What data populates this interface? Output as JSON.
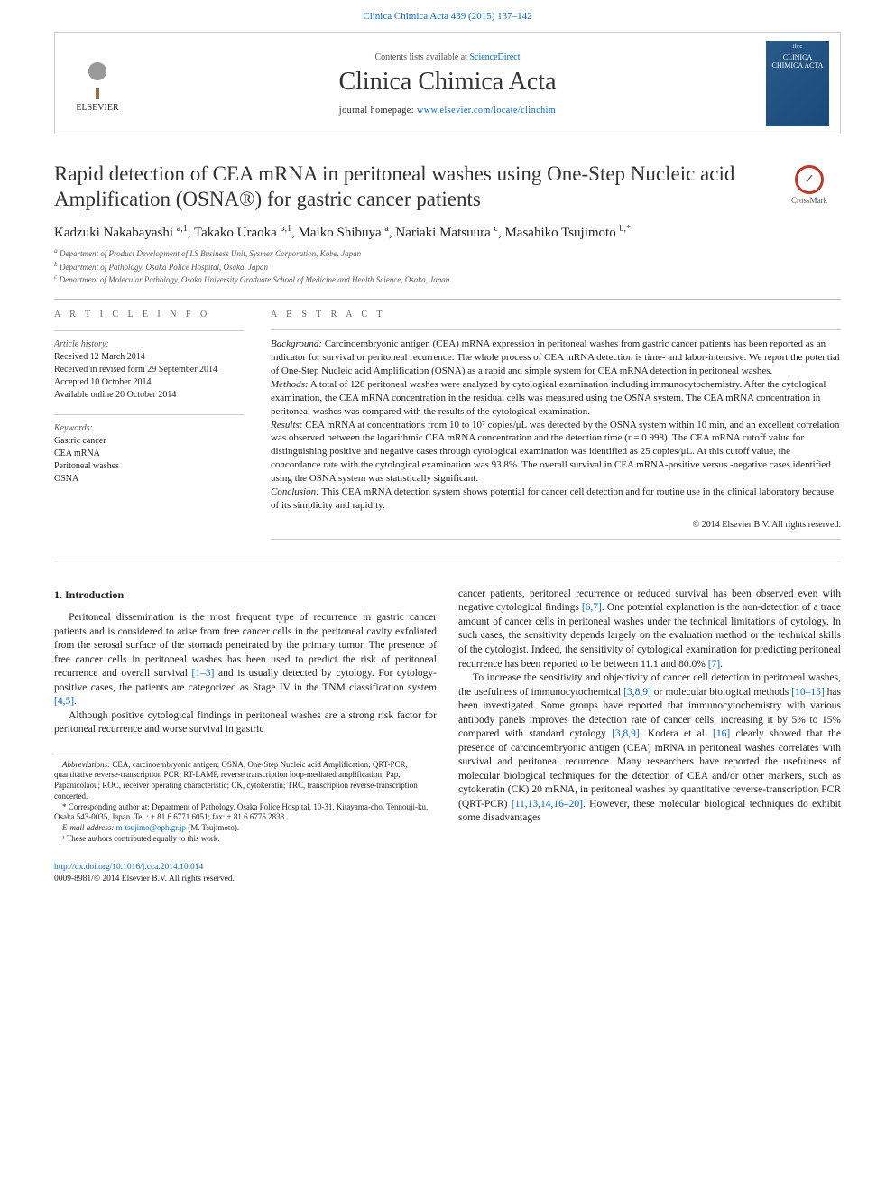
{
  "top_citation": {
    "text": "Clinica Chimica Acta 439 (2015) 137–142",
    "link_color": "#0066cc"
  },
  "header": {
    "contents_text": "Contents lists available at ",
    "contents_link": "ScienceDirect",
    "journal_name": "Clinica Chimica Acta",
    "homepage_label": "journal homepage: ",
    "homepage_url": "www.elsevier.com/locate/clinchim",
    "publisher_name": "ELSEVIER",
    "cover_brand": "ifcc",
    "cover_title": "CLINICA CHIMICA ACTA"
  },
  "crossmark_label": "CrossMark",
  "title": "Rapid detection of CEA mRNA in peritoneal washes using One-Step Nucleic acid Amplification (OSNA®) for gastric cancer patients",
  "authors_html": "Kadzuki Nakabayashi <sup>a,1</sup>, Takako Uraoka <sup>b,1</sup>, Maiko Shibuya <sup>a</sup>, Nariaki Matsuura <sup>c</sup>, Masahiko Tsujimoto <sup>b,*</sup>",
  "affiliations": [
    "a Department of Product Development of LS Business Unit, Sysmex Corporation, Kobe, Japan",
    "b Department of Pathology, Osaka Police Hospital, Osaka, Japan",
    "c Department of Molecular Pathology, Osaka University Graduate School of Medicine and Health Science, Osaka, Japan"
  ],
  "article_info": {
    "heading": "A R T I C L E   I N F O",
    "history_label": "Article history:",
    "history": [
      "Received 12 March 2014",
      "Received in revised form 29 September 2014",
      "Accepted 10 October 2014",
      "Available online 20 October 2014"
    ],
    "keywords_label": "Keywords:",
    "keywords": [
      "Gastric cancer",
      "CEA mRNA",
      "Peritoneal washes",
      "OSNA"
    ]
  },
  "abstract": {
    "heading": "A B S T R A C T",
    "sections": {
      "background_label": "Background:",
      "background_text": " Carcinoembryonic antigen (CEA) mRNA expression in peritoneal washes from gastric cancer patients has been reported as an indicator for survival or peritoneal recurrence. The whole process of CEA mRNA detection is time- and labor-intensive. We report the potential of One-Step Nucleic acid Amplification (OSNA) as a rapid and simple system for CEA mRNA detection in peritoneal washes.",
      "methods_label": "Methods:",
      "methods_text": " A total of 128 peritoneal washes were analyzed by cytological examination including immunocytochemistry. After the cytological examination, the CEA mRNA concentration in the residual cells was measured using the OSNA system. The CEA mRNA concentration in peritoneal washes was compared with the results of the cytological examination.",
      "results_label": "Results:",
      "results_text": " CEA mRNA at concentrations from 10 to 10⁷ copies/μL was detected by the OSNA system within 10 min, and an excellent correlation was observed between the logarithmic CEA mRNA concentration and the detection time (r = 0.998). The CEA mRNA cutoff value for distinguishing positive and negative cases through cytological examination was identified as 25 copies/μL. At this cutoff value, the concordance rate with the cytological examination was 93.8%. The overall survival in CEA mRNA-positive versus -negative cases identified using the OSNA system was statistically significant.",
      "conclusion_label": "Conclusion:",
      "conclusion_text": " This CEA mRNA detection system shows potential for cancer cell detection and for routine use in the clinical laboratory because of its simplicity and rapidity."
    },
    "copyright": "© 2014 Elsevier B.V. All rights reserved."
  },
  "introduction": {
    "heading": "1. Introduction",
    "col1_p1": "Peritoneal dissemination is the most frequent type of recurrence in gastric cancer patients and is considered to arise from free cancer cells in the peritoneal cavity exfoliated from the serosal surface of the stomach penetrated by the primary tumor. The presence of free cancer cells in peritoneal washes has been used to predict the risk of peritoneal recurrence and overall survival ",
    "col1_p1_ref": "[1–3]",
    "col1_p1_tail": " and is usually detected by cytology. For cytology-positive cases, the patients are categorized as Stage IV in the TNM classification system ",
    "col1_p1_ref2": "[4,5]",
    "col1_p1_end": ".",
    "col1_p2": "Although positive cytological findings in peritoneal washes are a strong risk factor for peritoneal recurrence and worse survival in gastric",
    "col2_p1_head": "cancer patients, peritoneal recurrence or reduced survival has been observed even with negative cytological findings ",
    "col2_p1_ref": "[6,7]",
    "col2_p1_tail": ". One potential explanation is the non-detection of a trace amount of cancer cells in peritoneal washes under the technical limitations of cytology. In such cases, the sensitivity depends largely on the evaluation method or the technical skills of the cytologist. Indeed, the sensitivity of cytological examination for predicting peritoneal recurrence has been reported to be between 11.1 and 80.0% ",
    "col2_p1_ref2": "[7]",
    "col2_p1_end": ".",
    "col2_p2_head": "To increase the sensitivity and objectivity of cancer cell detection in peritoneal washes, the usefulness of immunocytochemical ",
    "col2_p2_ref1": "[3,8,9]",
    "col2_p2_mid1": " or molecular biological methods ",
    "col2_p2_ref2": "[10–15]",
    "col2_p2_mid2": " has been investigated. Some groups have reported that immunocytochemistry with various antibody panels improves the detection rate of cancer cells, increasing it by 5% to 15% compared with standard cytology ",
    "col2_p2_ref3": "[3,8,9]",
    "col2_p2_mid3": ". Kodera et al. ",
    "col2_p2_ref4": "[16]",
    "col2_p2_mid4": " clearly showed that the presence of carcinoembryonic antigen (CEA) mRNA in peritoneal washes correlates with survival and peritoneal recurrence. Many researchers have reported the usefulness of molecular biological techniques for the detection of CEA and/or other markers, such as cytokeratin (CK) 20 mRNA, in peritoneal washes by quantitative reverse-transcription PCR (QRT-PCR) ",
    "col2_p2_ref5": "[11,13,14,16–20]",
    "col2_p2_tail": ". However, these molecular biological techniques do exhibit some disadvantages"
  },
  "footnotes": {
    "abbrev_label": "Abbreviations:",
    "abbrev_text": " CEA, carcinoembryonic antigen; OSNA, One-Step Nucleic acid Amplification; QRT-PCR, quantitative reverse-transcription PCR; RT-LAMP, reverse transcription loop-mediated amplification; Pap, Papanicolaou; ROC, receiver operating characteristic; CK, cytokeratin; TRC, transcription reverse-transcription concerted.",
    "corr_label": "*",
    "corr_text": " Corresponding author at: Department of Pathology, Osaka Police Hospital, 10-31, Kitayama-cho, Tennouji-ku, Osaka 543-0035, Japan. Tel.: + 81 6 6771 6051; fax: + 81 6 6775 2838.",
    "email_label": "E-mail address:",
    "email": "m-tsujimo@oph.gr.jp",
    "email_person": " (M. Tsujimoto).",
    "equal": "¹ These authors contributed equally to this work."
  },
  "footer": {
    "doi": "http://dx.doi.org/10.1016/j.cca.2014.10.014",
    "issn_line": "0009-8981/© 2014 Elsevier B.V. All rights reserved."
  },
  "colors": {
    "link": "#0066cc",
    "text": "#222222",
    "muted": "#555555",
    "rule": "#bbbbbb",
    "cover_bg_start": "#2a5a8a",
    "cover_bg_end": "#1a4a7a",
    "crossmark_ring": "#c0392b"
  }
}
